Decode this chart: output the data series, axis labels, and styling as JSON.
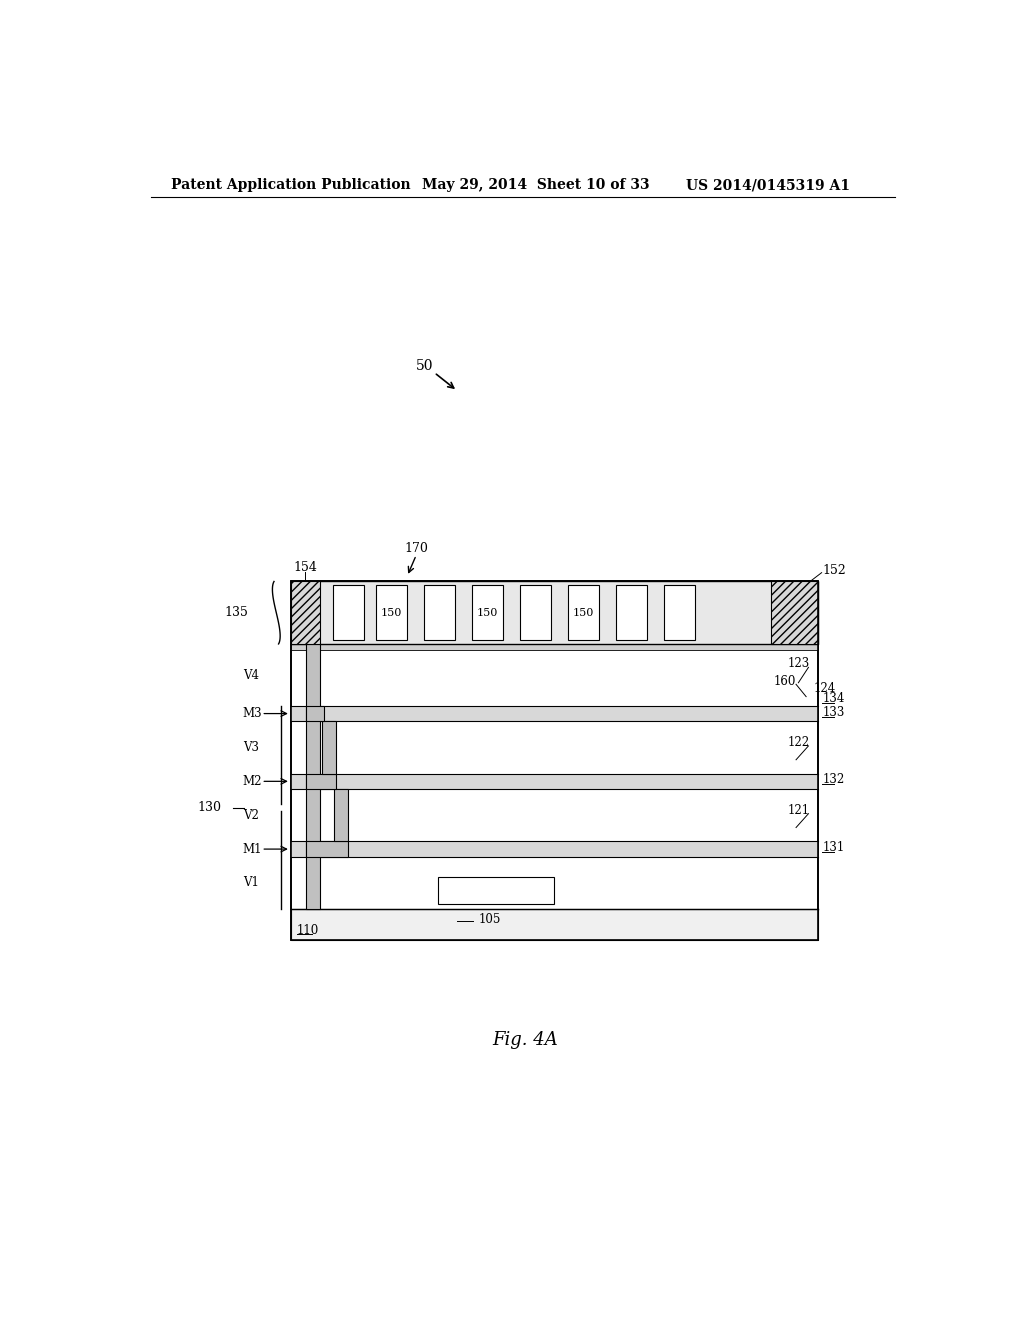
{
  "bg_color": "#ffffff",
  "header_text1": "Patent Application Publication",
  "header_text2": "May 29, 2014  Sheet 10 of 33",
  "header_text3": "US 2014/0145319 A1",
  "fig_label": "Fig. 4A",
  "ref_50": "50",
  "ref_170": "170",
  "ref_154": "154",
  "ref_152": "152",
  "ref_135": "135",
  "ref_150": "150",
  "ref_160": "160",
  "ref_124": "124",
  "ref_134": "134",
  "ref_123": "123",
  "ref_133": "133",
  "ref_130": "130",
  "ref_122": "122",
  "ref_132": "132",
  "ref_121": "121",
  "ref_131": "131",
  "ref_110": "110",
  "ref_105": "105",
  "label_V4": "V4",
  "label_M3": "M3",
  "label_V3": "V3",
  "label_M2": "M2",
  "label_V2": "V2",
  "label_M1": "M1",
  "label_V1": "V1"
}
